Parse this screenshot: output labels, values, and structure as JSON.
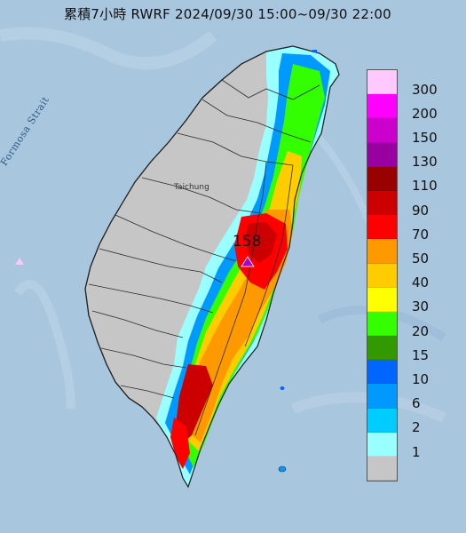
{
  "title": "累積7小時 RWRF 2024/09/30 15:00~09/30 22:00",
  "strait_label": "Formosa Strait",
  "city_label": "Taichung",
  "max_value": "158",
  "colors": {
    "sea": "#a9c6df",
    "land_gray": "#c6c6c6",
    "max_marker": "#b000c8"
  },
  "legend": {
    "items": [
      {
        "label": "300",
        "color": "#ffc8ff"
      },
      {
        "label": "200",
        "color": "#ff00ff"
      },
      {
        "label": "150",
        "color": "#cc00cc"
      },
      {
        "label": "130",
        "color": "#9900a0"
      },
      {
        "label": "110",
        "color": "#990000"
      },
      {
        "label": "90",
        "color": "#cc0000"
      },
      {
        "label": "70",
        "color": "#ff0000"
      },
      {
        "label": "50",
        "color": "#ff9900"
      },
      {
        "label": "40",
        "color": "#ffcc00"
      },
      {
        "label": "30",
        "color": "#ffff00"
      },
      {
        "label": "20",
        "color": "#33ff00"
      },
      {
        "label": "15",
        "color": "#339900"
      },
      {
        "label": "10",
        "color": "#0066ff"
      },
      {
        "label": "6",
        "color": "#0099ff"
      },
      {
        "label": "2",
        "color": "#00ccff"
      },
      {
        "label": "1",
        "color": "#99ffff"
      },
      {
        "label": "",
        "color": "#c6c6c6"
      }
    ]
  }
}
